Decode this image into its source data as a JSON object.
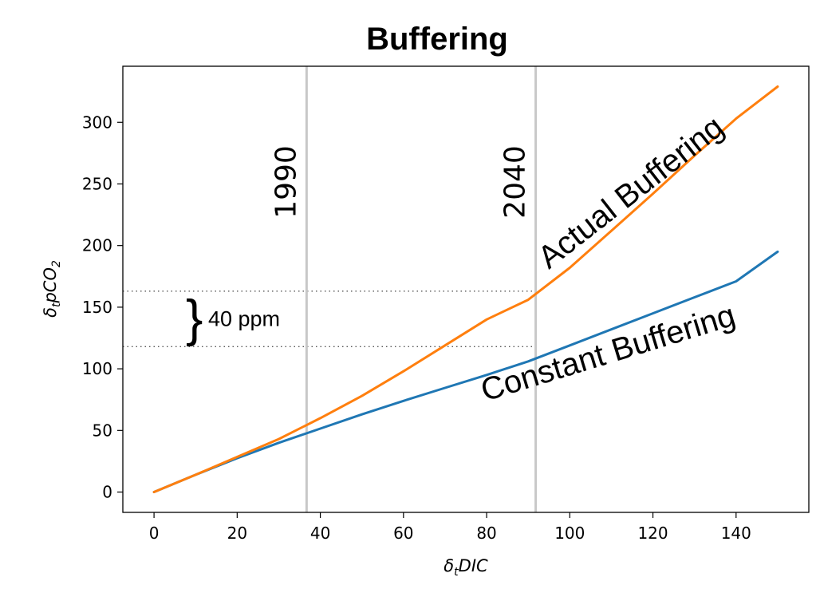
{
  "chart_data": {
    "type": "line",
    "title": "Buffering",
    "xlabel_main": "δ",
    "xlabel_sub": "t",
    "xlabel_rest": "DIC",
    "ylabel_main": "δ",
    "ylabel_sub": "t",
    "ylabel_mid": "pCO",
    "ylabel_sub2": "2",
    "xlim": [
      -7.5,
      157.5
    ],
    "ylim": [
      -16.5,
      345.5
    ],
    "xticks": [
      0,
      20,
      40,
      60,
      80,
      100,
      120,
      140
    ],
    "yticks": [
      0,
      50,
      100,
      150,
      200,
      250,
      300
    ],
    "grid": false,
    "series": [
      {
        "name": "Constant Buffering",
        "color": "#1f77b4",
        "x": [
          0,
          10,
          20,
          30,
          40,
          50,
          60,
          70,
          80,
          90,
          100,
          110,
          120,
          130,
          140,
          150
        ],
        "y": [
          0,
          14,
          27.5,
          40,
          51.5,
          63,
          74,
          84.5,
          95,
          106,
          119,
          132,
          145,
          158,
          171,
          195
        ]
      },
      {
        "name": "Actual Buffering",
        "color": "#ff7f0e",
        "x": [
          0,
          10,
          20,
          30,
          40,
          50,
          60,
          70,
          80,
          90,
          100,
          110,
          120,
          130,
          140,
          150
        ],
        "y": [
          0,
          14,
          28.5,
          43,
          60,
          78,
          98,
          119,
          140,
          156,
          182,
          212,
          242,
          273,
          303,
          329
        ]
      }
    ],
    "vlines": [
      {
        "label": "1990",
        "x": 36.7,
        "color": "#c8c8c8"
      },
      {
        "label": "2040",
        "x": 91.8,
        "color": "#c8c8c8"
      }
    ],
    "hlines": [
      {
        "y": 163
      },
      {
        "y": 118
      }
    ],
    "annotations": {
      "brace_symbol": "}",
      "brace_label": "40 ppm",
      "brace_x": 6.5,
      "brace_y": 140,
      "actual_label": "Actual Buffering",
      "constant_label": "Constant Buffering"
    }
  }
}
